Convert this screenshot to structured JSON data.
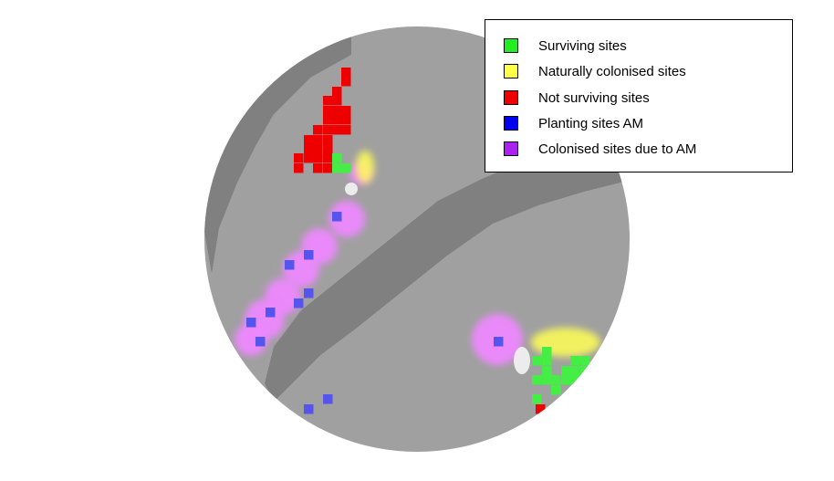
{
  "map": {
    "colors": {
      "background": "#ffffff",
      "light_gray": "#a0a0a0",
      "dark_gray": "#808080",
      "surviving": "#44ee44",
      "naturally_colonised": "#ffff55",
      "not_surviving": "#ee0000",
      "planting_am": "#5555ee",
      "colonised_am": "#ee88ff"
    }
  },
  "legend": {
    "items": [
      {
        "label": "Surviving sites",
        "color": "#22ee22"
      },
      {
        "label": "Naturally colonised sites",
        "color": "#ffff44"
      },
      {
        "label": "Not surviving sites",
        "color": "#ee0000"
      },
      {
        "label": "Planting sites AM",
        "color": "#0000ee"
      },
      {
        "label": "Colonised sites due to AM",
        "color": "#aa22ee"
      }
    ]
  }
}
